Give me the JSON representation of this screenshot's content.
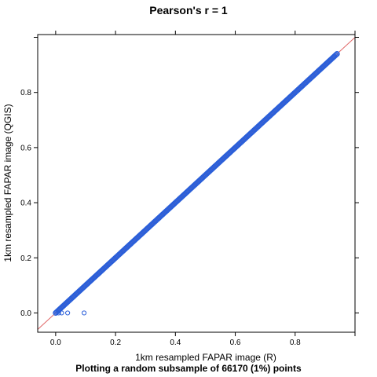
{
  "chart_data": {
    "type": "scatter",
    "title": "Pearson's r = 1",
    "subtitle": "Plotting a random subsample of 66170 (1%) points",
    "xlabel": "1km resampled FAPAR image (R)",
    "ylabel": "1km resampled FAPAR image (QGIS)",
    "xlim": [
      -0.06,
      1.0
    ],
    "ylim": [
      -0.07,
      1.01
    ],
    "xticks": [
      0.0,
      0.2,
      0.4,
      0.6,
      0.8
    ],
    "xtick_labels": [
      "0.0",
      "0.2",
      "0.4",
      "0.6",
      "0.8"
    ],
    "yticks": [
      0.0,
      0.2,
      0.4,
      0.6,
      0.8
    ],
    "ytick_labels": [
      "0.0",
      "0.2",
      "0.4",
      "0.6",
      "0.8"
    ],
    "grid": false,
    "colors": {
      "points": "#2b5fd9",
      "reference_line": "#e06666"
    },
    "reference_line": {
      "slope": 1,
      "intercept": 0
    },
    "points_range": {
      "x": [
        0.0,
        0.94
      ],
      "y": [
        0.0,
        0.94
      ]
    },
    "outliers": [
      {
        "x": 0.04,
        "y": 0.0
      },
      {
        "x": 0.02,
        "y": 0.0
      },
      {
        "x": 0.01,
        "y": 0.0
      },
      {
        "x": 0.095,
        "y": 0.0
      }
    ]
  }
}
